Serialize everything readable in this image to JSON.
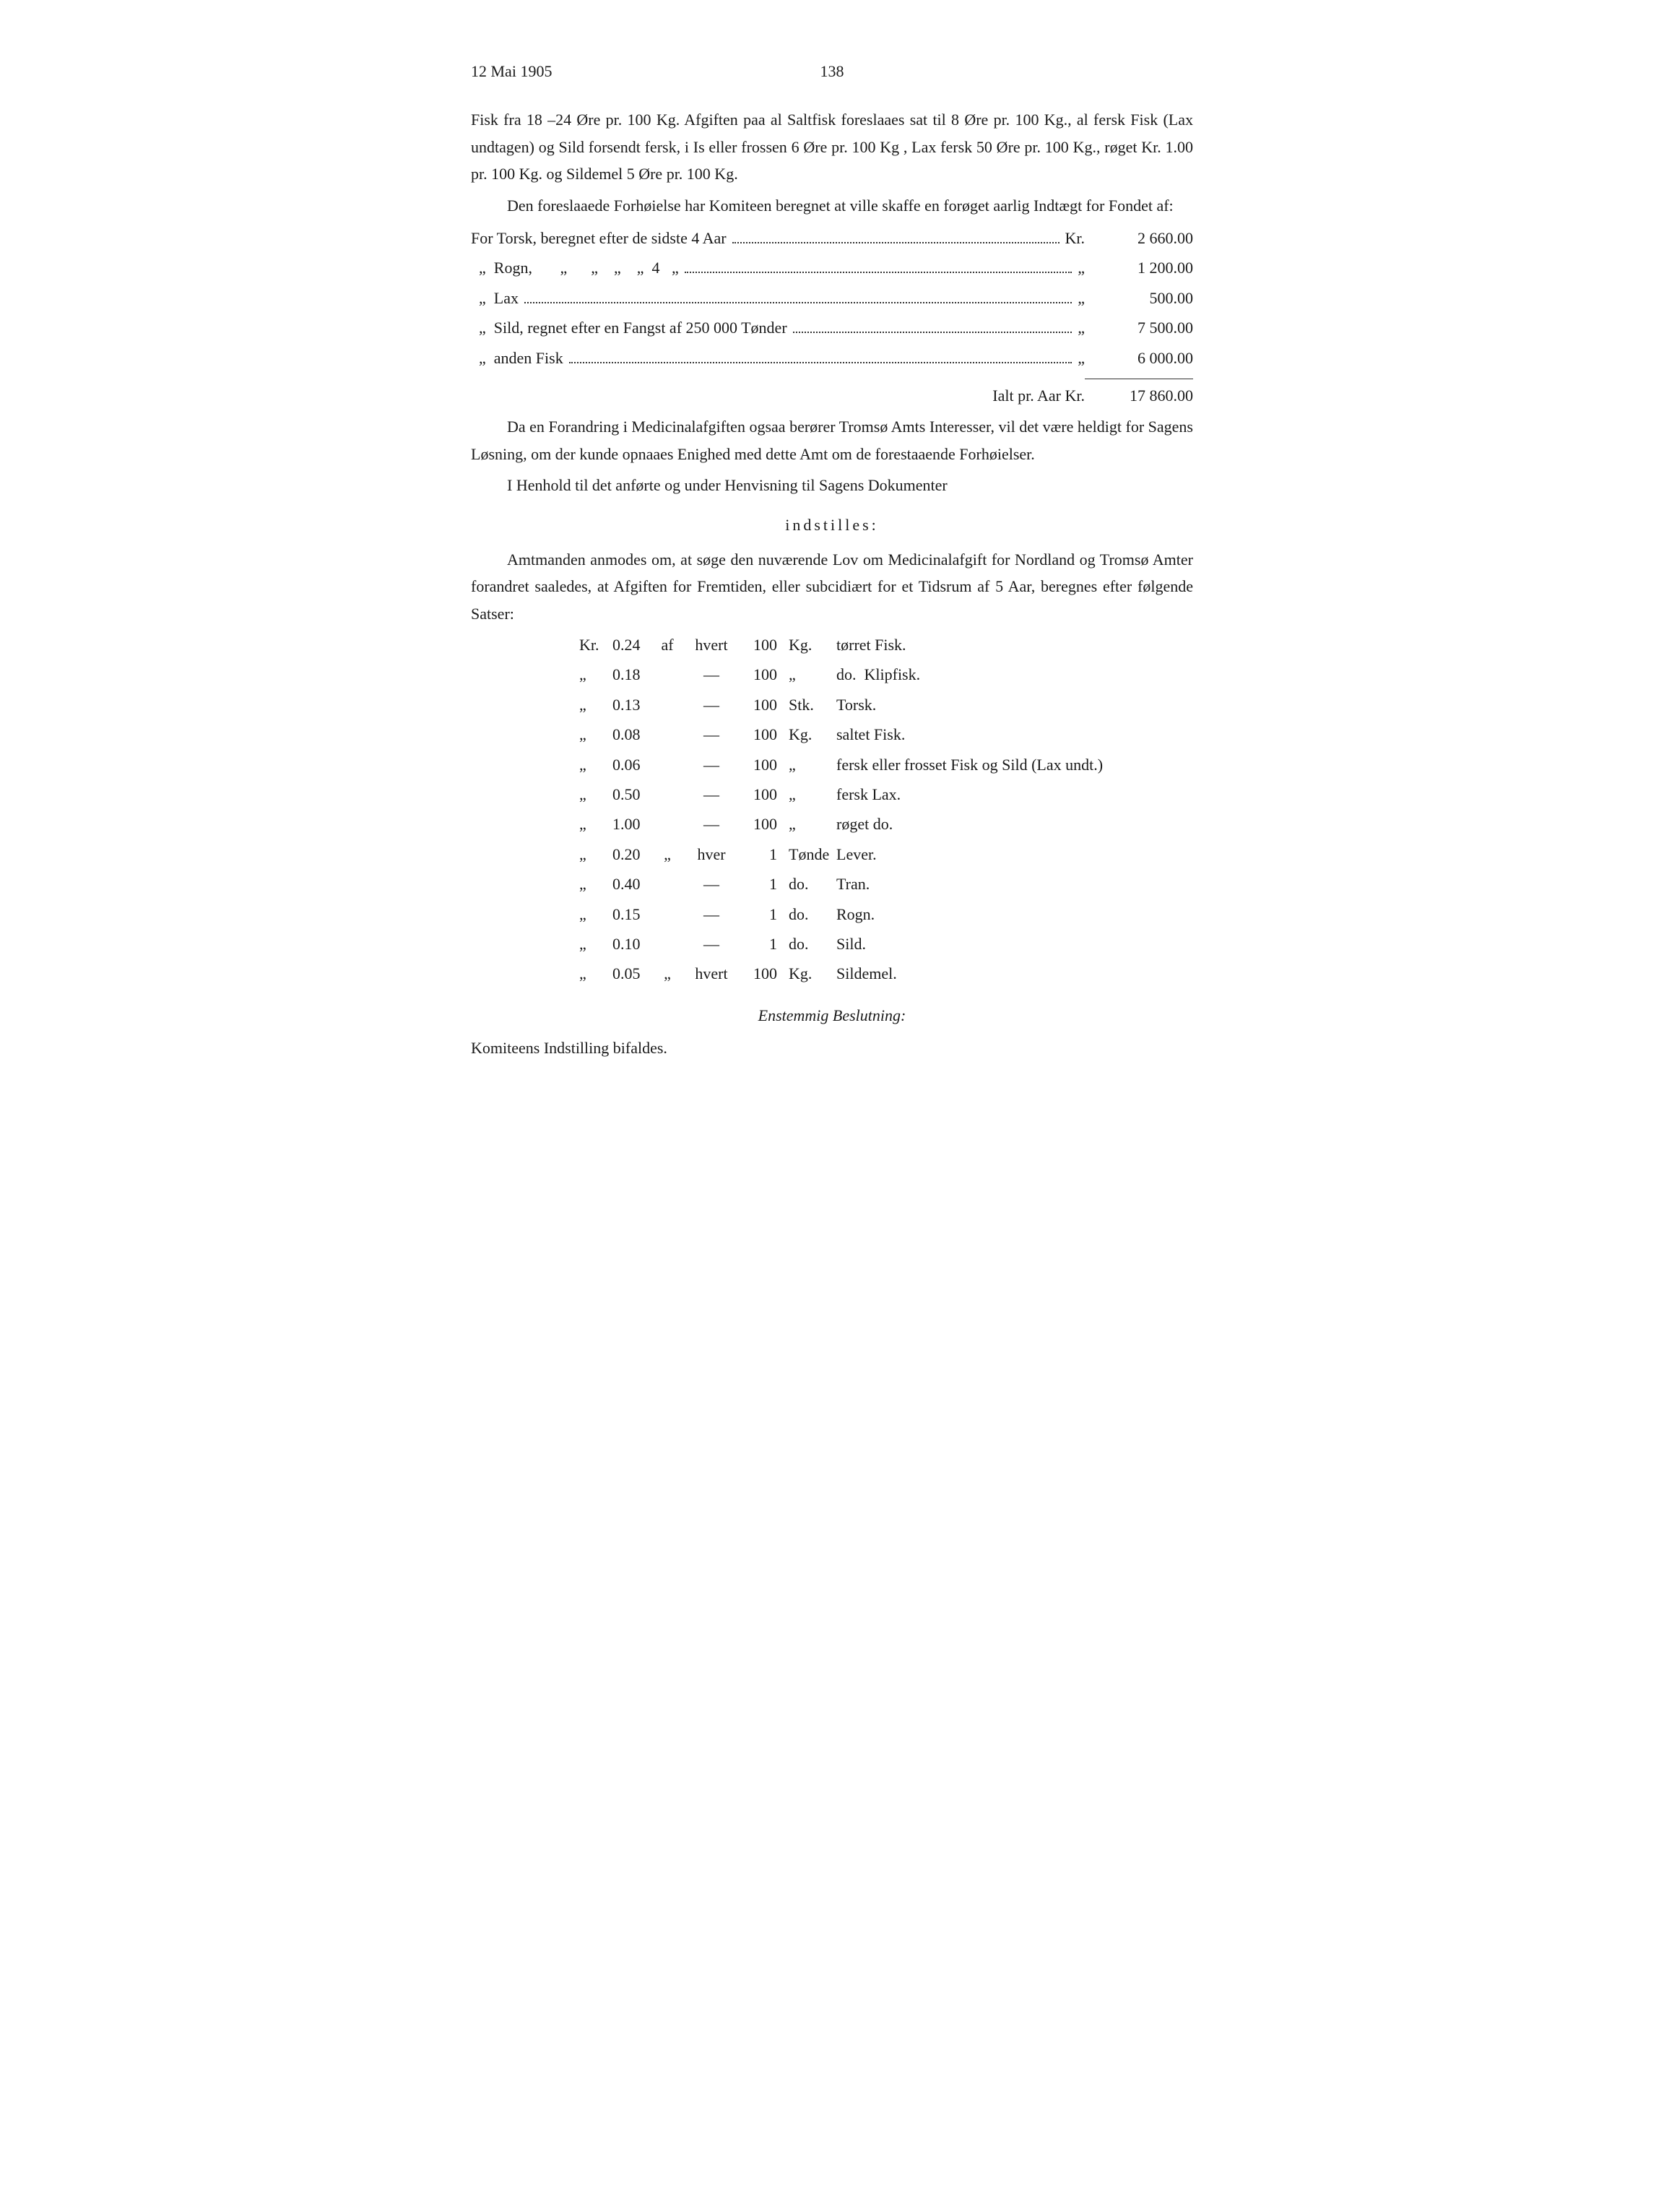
{
  "header": {
    "left": "12 Mai 1905",
    "page_number": "138"
  },
  "para1": "Fisk fra 18 –24 Øre pr. 100 Kg. Afgiften paa al Saltfisk foreslaaes sat til 8 Øre pr. 100 Kg., al fersk Fisk (Lax undtagen) og Sild forsendt fersk, i Is eller frossen 6 Øre pr. 100 Kg , Lax fersk 50 Øre pr. 100 Kg., røget Kr. 1.00 pr. 100 Kg. og Sildemel 5 Øre pr. 100 Kg.",
  "para2": "Den foreslaaede Forhøielse har Komiteen beregnet at ville skaffe en forøget aarlig Indtægt for Fondet af:",
  "income": [
    {
      "lead": "For Torsk, beregnet efter de sidste 4 Aar",
      "suffix": "Kr.",
      "amount": "2 660.00"
    },
    {
      "lead": "  „  Rogn,       „      „    „    „  4   „",
      "suffix": "„",
      "amount": "1 200.00"
    },
    {
      "lead": "  „  Lax",
      "suffix": "„",
      "amount": "500.00"
    },
    {
      "lead": "  „  Sild, regnet efter en Fangst af 250 000 Tønder",
      "suffix": "„",
      "amount": "7 500.00"
    },
    {
      "lead": "  „  anden Fisk",
      "suffix": "„",
      "amount": "6 000.00"
    }
  ],
  "total": {
    "label": "Ialt pr. Aar Kr.",
    "amount": "17 860.00"
  },
  "para3": "Da en Forandring i Medicinalafgiften ogsaa berører Tromsø Amts Interesser, vil det være heldigt for Sagens Løsning, om der kunde opnaaes Enighed med dette Amt om de forestaaende Forhøielser.",
  "para4": "I Henhold til det anførte og under Henvisning til Sagens Dokumenter",
  "indstilles": "indstilles:",
  "para5": "Amtmanden anmodes om, at søge den nuværende Lov om Medicinalafgift for Nordland og Tromsø Amter forandret saaledes, at Afgiften for Fremtiden, eller subcidiært for et Tidsrum af 5 Aar, beregnes efter følgende Satser:",
  "rates": [
    {
      "kr": "Kr.",
      "val": "0.24",
      "q1": "af",
      "mid": "hvert",
      "qty": "100",
      "unit": "Kg.",
      "desc": "tørret Fisk."
    },
    {
      "kr": "„",
      "val": "0.18",
      "q1": "",
      "mid": "—",
      "qty": "100",
      "unit": "„",
      "desc": "do.  Klipfisk."
    },
    {
      "kr": "„",
      "val": "0.13",
      "q1": "",
      "mid": "—",
      "qty": "100",
      "unit": "Stk.",
      "desc": "Torsk."
    },
    {
      "kr": "„",
      "val": "0.08",
      "q1": "",
      "mid": "—",
      "qty": "100",
      "unit": "Kg.",
      "desc": "saltet Fisk."
    },
    {
      "kr": "„",
      "val": "0.06",
      "q1": "",
      "mid": "—",
      "qty": "100",
      "unit": "„",
      "desc": "fersk eller frosset Fisk og Sild (Lax undt.)"
    },
    {
      "kr": "„",
      "val": "0.50",
      "q1": "",
      "mid": "—",
      "qty": "100",
      "unit": "„",
      "desc": "fersk Lax."
    },
    {
      "kr": "„",
      "val": "1.00",
      "q1": "",
      "mid": "—",
      "qty": "100",
      "unit": "„",
      "desc": "røget do."
    },
    {
      "kr": "„",
      "val": "0.20",
      "q1": "„",
      "mid": "hver",
      "qty": "1",
      "unit": "Tønde",
      "desc": "Lever."
    },
    {
      "kr": "„",
      "val": "0.40",
      "q1": "",
      "mid": "—",
      "qty": "1",
      "unit": "do.",
      "desc": "Tran."
    },
    {
      "kr": "„",
      "val": "0.15",
      "q1": "",
      "mid": "—",
      "qty": "1",
      "unit": "do.",
      "desc": "Rogn."
    },
    {
      "kr": "„",
      "val": "0.10",
      "q1": "",
      "mid": "—",
      "qty": "1",
      "unit": "do.",
      "desc": "Sild."
    },
    {
      "kr": "„",
      "val": "0.05",
      "q1": "„",
      "mid": "hvert",
      "qty": "100",
      "unit": "Kg.",
      "desc": "Sildemel."
    }
  ],
  "resolution_heading": "Enstemmig Beslutning:",
  "resolution_text": "Komiteens Indstilling bifaldes."
}
